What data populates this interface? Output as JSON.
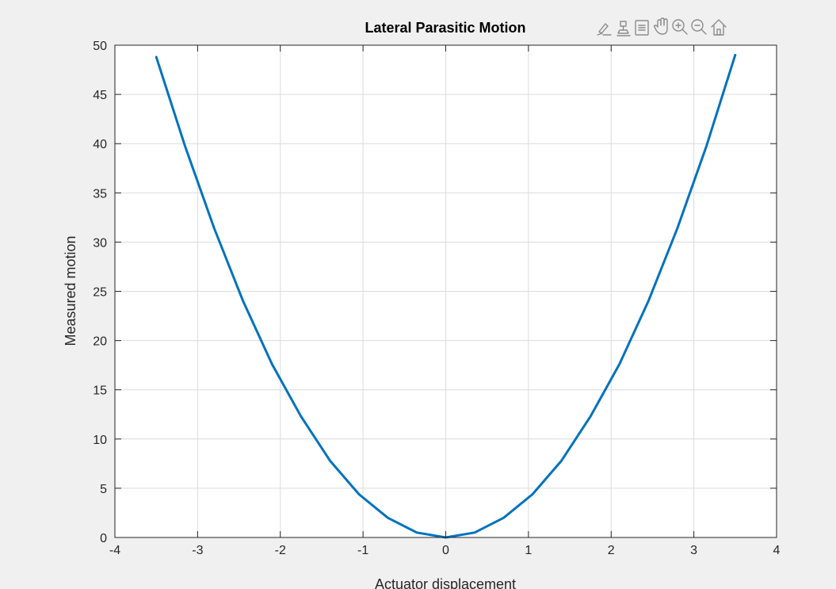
{
  "chart_data": {
    "type": "line",
    "title": "Lateral Parasitic Motion",
    "xlabel": "Actuator displacement",
    "ylabel": "Measured motion",
    "xlim": [
      -4,
      4
    ],
    "ylim": [
      0,
      50
    ],
    "x_ticks": [
      -4,
      -3,
      -2,
      -1,
      0,
      1,
      2,
      3,
      4
    ],
    "y_ticks": [
      0,
      5,
      10,
      15,
      20,
      25,
      30,
      35,
      40,
      45,
      50
    ],
    "x_tick_labels": [
      "-4",
      "-3",
      "-2",
      "-1",
      "0",
      "1",
      "2",
      "3",
      "4"
    ],
    "y_tick_labels": [
      "0",
      "5",
      "10",
      "15",
      "20",
      "25",
      "30",
      "35",
      "40",
      "45",
      "50"
    ],
    "grid": true,
    "line_color": "#0072BD",
    "series": [
      {
        "x": [
          -3.5,
          -3.15,
          -2.8,
          -2.45,
          -2.1,
          -1.75,
          -1.4,
          -1.05,
          -0.7,
          -0.35,
          0,
          0.35,
          0.7,
          1.05,
          1.4,
          1.75,
          2.1,
          2.45,
          2.8,
          3.15,
          3.5
        ],
        "values": [
          48.8,
          39.7,
          31.4,
          24.0,
          17.6,
          12.3,
          7.8,
          4.4,
          2.0,
          0.5,
          0,
          0.5,
          2.0,
          4.4,
          7.8,
          12.3,
          17.6,
          24.0,
          31.4,
          39.7,
          49.0
        ]
      }
    ]
  },
  "toolbar": {
    "icons": [
      "brush-icon",
      "data-tips-icon",
      "datatip-list-icon",
      "pan-hand-icon",
      "zoom-in-icon",
      "zoom-out-icon",
      "home-icon"
    ]
  }
}
